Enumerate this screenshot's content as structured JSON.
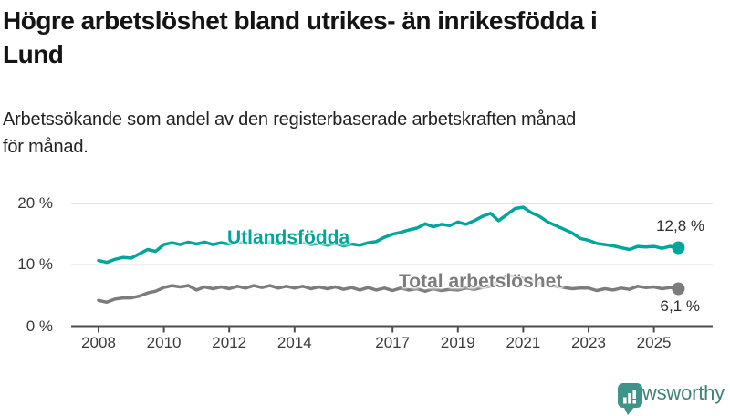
{
  "title": {
    "line1": "Högre arbetslöshet bland utrikes- än inrikesfödda i",
    "line2": "Lund"
  },
  "subtitle": {
    "line1": "Arbetssökande som andel av den registerbaserade arbetskraften månad",
    "line2": "för månad."
  },
  "branding": {
    "name": "Newsworthy",
    "logo_icon": "bar-chart-speech-bubble"
  },
  "colors": {
    "accent_teal": "#00a69c",
    "series_gray": "#7c7c7c",
    "grid": "#dcdcdc",
    "axis": "#4d4d4d",
    "text_dark": "#141414",
    "logo_teal": "#3f9489"
  },
  "chart_data": {
    "type": "line",
    "title": "Högre arbetslöshet bland utrikes- än inrikesfödda i Lund",
    "subtitle": "Arbetssökande som andel av den registerbaserade arbetskraften månad för månad.",
    "xlabel": "",
    "ylabel": "",
    "grid": "horizontal",
    "legend_position": "inline-labels",
    "x_axis": {
      "range": [
        2008,
        2025.75
      ],
      "ticks": [
        2008,
        2010,
        2012,
        2014,
        2017,
        2019,
        2021,
        2023,
        2025
      ],
      "tick_labels": [
        "2008",
        "2010",
        "2012",
        "2014",
        "2017",
        "2019",
        "2021",
        "2023",
        "2025"
      ]
    },
    "y_axis": {
      "range": [
        0,
        21.5
      ],
      "unit": "%",
      "ticks": [
        0,
        10,
        20
      ],
      "tick_labels": [
        "0 %",
        "10 %",
        "20 %"
      ]
    },
    "series": [
      {
        "name": "Utlandsfödda",
        "color": "#00a69c",
        "end_value": 12.8,
        "end_label": "12,8 %",
        "points": [
          [
            2008.0,
            10.7
          ],
          [
            2008.25,
            10.4
          ],
          [
            2008.5,
            10.9
          ],
          [
            2008.75,
            11.2
          ],
          [
            2009.0,
            11.1
          ],
          [
            2009.25,
            11.8
          ],
          [
            2009.5,
            12.5
          ],
          [
            2009.75,
            12.2
          ],
          [
            2010.0,
            13.3
          ],
          [
            2010.25,
            13.6
          ],
          [
            2010.5,
            13.3
          ],
          [
            2010.75,
            13.7
          ],
          [
            2011.0,
            13.4
          ],
          [
            2011.25,
            13.7
          ],
          [
            2011.5,
            13.3
          ],
          [
            2011.75,
            13.6
          ],
          [
            2012.0,
            13.4
          ],
          [
            2012.25,
            13.8
          ],
          [
            2012.5,
            13.5
          ],
          [
            2012.75,
            13.7
          ],
          [
            2013.0,
            13.5
          ],
          [
            2013.25,
            13.8
          ],
          [
            2013.5,
            13.4
          ],
          [
            2013.75,
            13.6
          ],
          [
            2014.0,
            13.4
          ],
          [
            2014.25,
            13.7
          ],
          [
            2014.5,
            13.3
          ],
          [
            2014.75,
            13.5
          ],
          [
            2015.0,
            13.2
          ],
          [
            2015.25,
            13.5
          ],
          [
            2015.5,
            13.1
          ],
          [
            2015.75,
            13.4
          ],
          [
            2016.0,
            13.2
          ],
          [
            2016.25,
            13.6
          ],
          [
            2016.5,
            13.8
          ],
          [
            2016.75,
            14.5
          ],
          [
            2017.0,
            15.0
          ],
          [
            2017.25,
            15.3
          ],
          [
            2017.5,
            15.7
          ],
          [
            2017.75,
            16.0
          ],
          [
            2018.0,
            16.7
          ],
          [
            2018.25,
            16.2
          ],
          [
            2018.5,
            16.6
          ],
          [
            2018.75,
            16.4
          ],
          [
            2019.0,
            17.0
          ],
          [
            2019.25,
            16.6
          ],
          [
            2019.5,
            17.2
          ],
          [
            2019.75,
            17.9
          ],
          [
            2020.0,
            18.4
          ],
          [
            2020.25,
            17.2
          ],
          [
            2020.5,
            18.2
          ],
          [
            2020.75,
            19.2
          ],
          [
            2021.0,
            19.4
          ],
          [
            2021.25,
            18.5
          ],
          [
            2021.5,
            17.9
          ],
          [
            2021.75,
            17.0
          ],
          [
            2022.0,
            16.4
          ],
          [
            2022.25,
            15.8
          ],
          [
            2022.5,
            15.2
          ],
          [
            2022.75,
            14.3
          ],
          [
            2023.0,
            14.0
          ],
          [
            2023.25,
            13.5
          ],
          [
            2023.5,
            13.3
          ],
          [
            2023.75,
            13.1
          ],
          [
            2024.0,
            12.8
          ],
          [
            2024.25,
            12.5
          ],
          [
            2024.5,
            13.0
          ],
          [
            2024.75,
            12.9
          ],
          [
            2025.0,
            13.0
          ],
          [
            2025.25,
            12.7
          ],
          [
            2025.5,
            13.0
          ],
          [
            2025.75,
            12.8
          ]
        ]
      },
      {
        "name": "Total arbetslöshet",
        "color": "#7c7c7c",
        "end_value": 6.1,
        "end_label": "6,1 %",
        "points": [
          [
            2008.0,
            4.2
          ],
          [
            2008.25,
            3.9
          ],
          [
            2008.5,
            4.4
          ],
          [
            2008.75,
            4.6
          ],
          [
            2009.0,
            4.6
          ],
          [
            2009.25,
            4.9
          ],
          [
            2009.5,
            5.4
          ],
          [
            2009.75,
            5.7
          ],
          [
            2010.0,
            6.3
          ],
          [
            2010.25,
            6.6
          ],
          [
            2010.5,
            6.4
          ],
          [
            2010.75,
            6.6
          ],
          [
            2011.0,
            5.9
          ],
          [
            2011.25,
            6.4
          ],
          [
            2011.5,
            6.1
          ],
          [
            2011.75,
            6.4
          ],
          [
            2012.0,
            6.1
          ],
          [
            2012.25,
            6.5
          ],
          [
            2012.5,
            6.2
          ],
          [
            2012.75,
            6.6
          ],
          [
            2013.0,
            6.3
          ],
          [
            2013.25,
            6.6
          ],
          [
            2013.5,
            6.2
          ],
          [
            2013.75,
            6.5
          ],
          [
            2014.0,
            6.2
          ],
          [
            2014.25,
            6.5
          ],
          [
            2014.5,
            6.1
          ],
          [
            2014.75,
            6.4
          ],
          [
            2015.0,
            6.1
          ],
          [
            2015.25,
            6.4
          ],
          [
            2015.5,
            6.0
          ],
          [
            2015.75,
            6.3
          ],
          [
            2016.0,
            5.9
          ],
          [
            2016.25,
            6.3
          ],
          [
            2016.5,
            5.9
          ],
          [
            2016.75,
            6.2
          ],
          [
            2017.0,
            5.8
          ],
          [
            2017.25,
            6.2
          ],
          [
            2017.5,
            5.9
          ],
          [
            2017.75,
            6.1
          ],
          [
            2018.0,
            5.7
          ],
          [
            2018.25,
            6.1
          ],
          [
            2018.5,
            5.8
          ],
          [
            2018.75,
            6.0
          ],
          [
            2019.0,
            5.9
          ],
          [
            2019.25,
            6.2
          ],
          [
            2019.5,
            6.0
          ],
          [
            2019.75,
            6.3
          ],
          [
            2020.0,
            6.5
          ],
          [
            2020.25,
            7.4
          ],
          [
            2020.5,
            8.3
          ],
          [
            2020.75,
            8.0
          ],
          [
            2021.0,
            7.8
          ],
          [
            2021.25,
            7.4
          ],
          [
            2021.5,
            7.0
          ],
          [
            2021.75,
            6.7
          ],
          [
            2022.0,
            6.5
          ],
          [
            2022.25,
            6.3
          ],
          [
            2022.5,
            6.1
          ],
          [
            2022.75,
            6.2
          ],
          [
            2023.0,
            6.2
          ],
          [
            2023.25,
            5.8
          ],
          [
            2023.5,
            6.1
          ],
          [
            2023.75,
            5.9
          ],
          [
            2024.0,
            6.2
          ],
          [
            2024.25,
            6.0
          ],
          [
            2024.5,
            6.5
          ],
          [
            2024.75,
            6.3
          ],
          [
            2025.0,
            6.4
          ],
          [
            2025.25,
            6.1
          ],
          [
            2025.5,
            6.3
          ],
          [
            2025.75,
            6.1
          ]
        ]
      }
    ]
  }
}
